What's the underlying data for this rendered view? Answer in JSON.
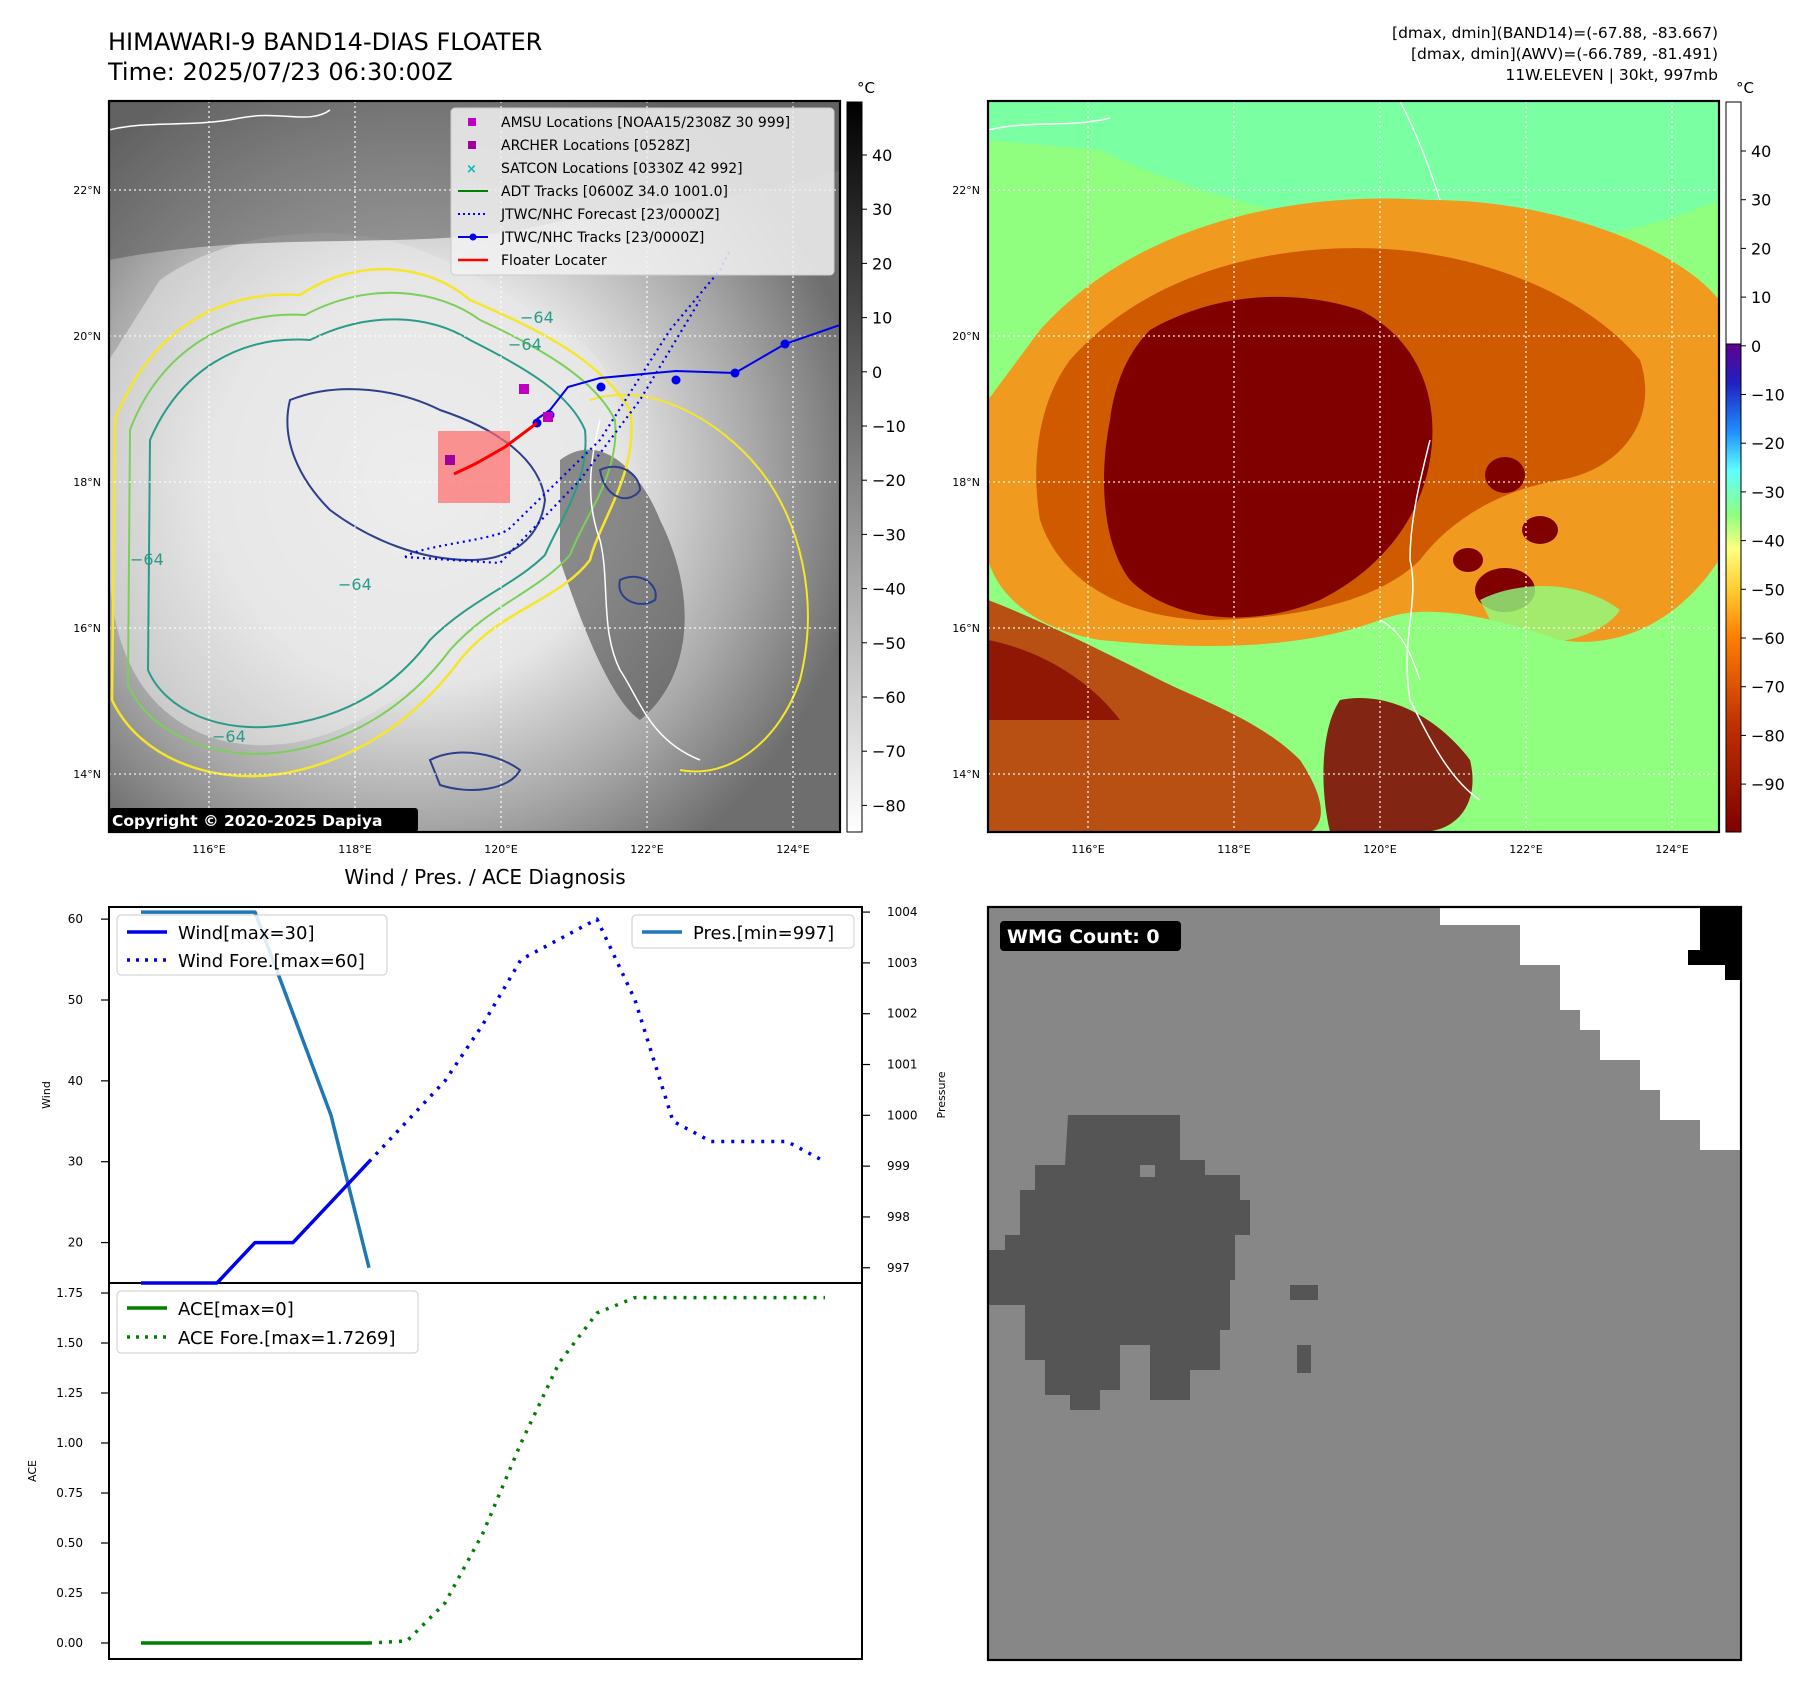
{
  "header": {
    "title_line1": "HIMAWARI-9 BAND14-DIAS FLOATER",
    "title_line2": "Time: 2025/07/23 06:30:00Z",
    "info_line1": "[dmax, dmin](BAND14)=(-67.88, -83.667)",
    "info_line2": "[dmax, dmin](AWV)=(-66.789, -81.491)",
    "info_line3": "11W.ELEVEN | 30kt, 997mb"
  },
  "colors": {
    "grayscale_cbar": [
      "#ffffff",
      "#000000"
    ],
    "awv_cbar_cold": [
      "#800000",
      "#c03000",
      "#ff7f00",
      "#ffd030",
      "#ffff80",
      "#90ff80",
      "#60ffff",
      "#2090ff",
      "#2020c0",
      "#600090"
    ],
    "awv_cbar_warm": [
      "#ffffff"
    ],
    "wind": "#0000ee",
    "pressure": "#1f77b4",
    "ace": "#008000",
    "floater": "#ff0000"
  },
  "map_common": {
    "lon_ticks": [
      "116°E",
      "118°E",
      "120°E",
      "122°E",
      "124°E"
    ],
    "lat_ticks": [
      "22°N",
      "20°N",
      "18°N",
      "16°N",
      "14°N"
    ],
    "unit": "°C"
  },
  "map_ir": {
    "colorbar_ticks": [
      "40",
      "30",
      "20",
      "10",
      "0",
      "−10",
      "−20",
      "−30",
      "−40",
      "−50",
      "−60",
      "−70",
      "−80"
    ],
    "contour_label": "−64",
    "copyright": "Copyright © 2020-2025 Dapiya",
    "legend": [
      {
        "label": "AMSU Locations [NOAA15/2308Z 30 999]",
        "icon": "magenta-square"
      },
      {
        "label": "ARCHER Locations [0528Z]",
        "icon": "purple-square"
      },
      {
        "label": "SATCON Locations [0330Z 42 992]",
        "icon": "cyan-x"
      },
      {
        "label": "ADT Tracks [0600Z 34.0 1001.0]",
        "icon": "green-line"
      },
      {
        "label": "JTWC/NHC Forecast [23/0000Z]",
        "icon": "blue-dotted-line"
      },
      {
        "label": "JTWC/NHC Tracks [23/0000Z]",
        "icon": "blue-line-dot"
      },
      {
        "label": "Floater Locater",
        "icon": "red-line"
      }
    ]
  },
  "map_awv": {
    "colorbar_ticks": [
      "40",
      "30",
      "20",
      "10",
      "0",
      "−10",
      "−20",
      "−30",
      "−40",
      "−50",
      "−60",
      "−70",
      "−80",
      "−90"
    ]
  },
  "wmg": {
    "badge": "WMG Count: 0"
  },
  "chart_data": [
    {
      "type": "line",
      "title": "Wind / Pres. / ACE Diagnosis",
      "ylabel": "Wind",
      "ylabel_right": "Pressure",
      "ylim": [
        15,
        61.5
      ],
      "ylim_right": [
        996.7,
        1004.1
      ],
      "y_ticks": [
        20,
        30,
        40,
        50,
        60
      ],
      "y_ticks_right": [
        997,
        998,
        999,
        1000,
        1001,
        1002,
        1003,
        1004
      ],
      "x": [
        0,
        1,
        2,
        3,
        4,
        5,
        6,
        7,
        8,
        9,
        10,
        11,
        12,
        13,
        14,
        15,
        16,
        17,
        18
      ],
      "series": [
        {
          "name": "Wind[max=30]",
          "axis": "left",
          "style": "solid",
          "values": [
            15,
            15,
            15,
            20,
            20,
            25,
            30,
            null,
            null,
            null,
            null,
            null,
            null,
            null,
            null,
            null,
            null,
            null,
            null
          ]
        },
        {
          "name": "Wind Fore.[max=60]",
          "axis": "left",
          "style": "dotted",
          "values": [
            null,
            null,
            null,
            null,
            null,
            null,
            30,
            35,
            40,
            47,
            55,
            57.5,
            60,
            50,
            35,
            32.5,
            32.5,
            32.5,
            30
          ]
        },
        {
          "name": "Pres.[min=997]",
          "axis": "right",
          "style": "solid",
          "values": [
            1004,
            1004,
            1004,
            1004,
            1002,
            1000,
            997,
            null,
            null,
            null,
            null,
            null,
            null,
            null,
            null,
            null,
            null,
            null,
            null
          ]
        }
      ]
    },
    {
      "type": "line",
      "ylabel": "ACE",
      "ylim": [
        -0.08,
        1.8
      ],
      "y_ticks": [
        "0.00",
        "0.25",
        "0.50",
        "0.75",
        "1.00",
        "1.25",
        "1.50",
        "1.75"
      ],
      "x": [
        0,
        1,
        2,
        3,
        4,
        5,
        6,
        7,
        8,
        9,
        10,
        11,
        12,
        13,
        14,
        15,
        16,
        17,
        18
      ],
      "series": [
        {
          "name": "ACE[max=0]",
          "style": "solid",
          "values": [
            0,
            0,
            0,
            0,
            0,
            0,
            0,
            null,
            null,
            null,
            null,
            null,
            null,
            null,
            null,
            null,
            null,
            null,
            null
          ]
        },
        {
          "name": "ACE Fore.[max=1.7269]",
          "style": "dotted",
          "values": [
            null,
            null,
            null,
            null,
            null,
            null,
            0,
            0.01,
            0.2,
            0.55,
            1.0,
            1.4,
            1.65,
            1.7269,
            1.7269,
            1.7269,
            1.7269,
            1.7269,
            1.7269
          ]
        }
      ]
    }
  ]
}
